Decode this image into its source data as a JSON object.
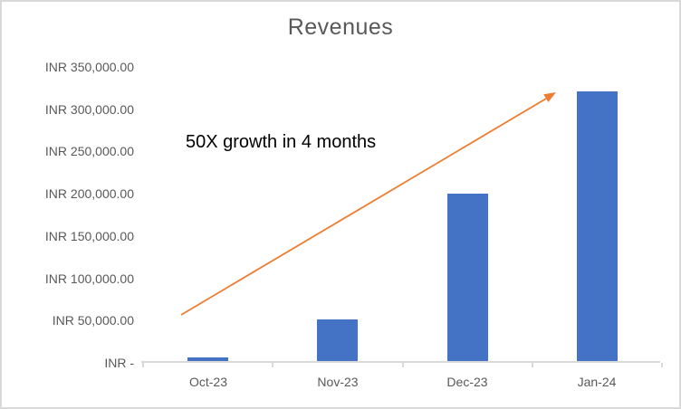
{
  "chart_data": {
    "type": "bar",
    "title": "Revenues",
    "categories": [
      "Oct-23",
      "Nov-23",
      "Dec-23",
      "Jan-24"
    ],
    "values": [
      6500,
      51500,
      200500,
      321000
    ],
    "xlabel": "",
    "ylabel": "",
    "ylim": [
      0,
      350000
    ],
    "y_tick_interval": 50000,
    "y_tick_labels": [
      "INR 350,000.00",
      "INR 300,000.00",
      "INR 250,000.00",
      "INR 200,000.00",
      "INR 150,000.00",
      "INR 100,000.00",
      "INR 50,000.00",
      "INR -"
    ],
    "grid": false,
    "legend": false,
    "annotation": "50X growth in 4 months"
  },
  "colors": {
    "bar": "#4472C4",
    "arrow": "#ED7D31",
    "axis_line": "#D9D9D9",
    "tick_text": "#595959",
    "title_text": "#595959",
    "annotation_text": "#000000",
    "frame_border": "#D9D9D9",
    "background": "#FFFFFF"
  }
}
